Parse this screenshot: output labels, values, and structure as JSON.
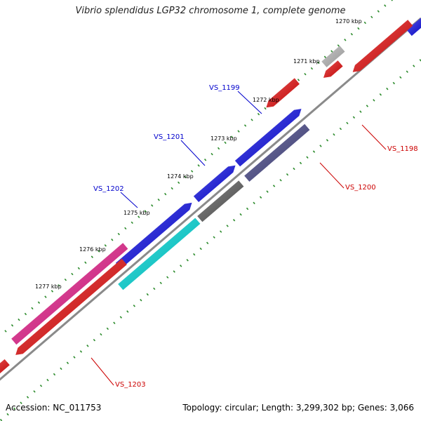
{
  "title": "Vibrio splendidus LGP32 chromosome 1, complete genome",
  "footer": {
    "accession": "Accession: NC_011753",
    "summary": "Topology: circular; Length: 3,299,302 bp; Genes: 3,066"
  },
  "ticks": [
    {
      "label": "1270 kbp",
      "position_kbp": 1270
    },
    {
      "label": "1271 kbp",
      "position_kbp": 1271
    },
    {
      "label": "1272 kbp",
      "position_kbp": 1272
    },
    {
      "label": "1273 kbp",
      "position_kbp": 1273
    },
    {
      "label": "1274 kbp",
      "position_kbp": 1274
    },
    {
      "label": "1275 kbp",
      "position_kbp": 1275
    },
    {
      "label": "1276 kbp",
      "position_kbp": 1276
    },
    {
      "label": "1277 kbp",
      "position_kbp": 1277
    }
  ],
  "gene_labels": [
    {
      "name": "VS_1199",
      "color": "#0000cc"
    },
    {
      "name": "VS_1201",
      "color": "#0000cc"
    },
    {
      "name": "VS_1202",
      "color": "#0000cc"
    },
    {
      "name": "VS_1198",
      "color": "#cc0000"
    },
    {
      "name": "VS_1200",
      "color": "#cc0000"
    },
    {
      "name": "VS_1203",
      "color": "#cc0000"
    }
  ],
  "colors": {
    "backbone": "#8a8a8a",
    "tick_marks": "#2a8a2a",
    "forward_cds": "#1010ee",
    "reverse_cds": "#ee1010",
    "gene_slate": "#4a4a8c",
    "gene_gray": "#606060",
    "gene_cyan": "#00e0e0",
    "gene_pink": "#ee2090",
    "gene_lightgray": "#bdbdbd"
  }
}
